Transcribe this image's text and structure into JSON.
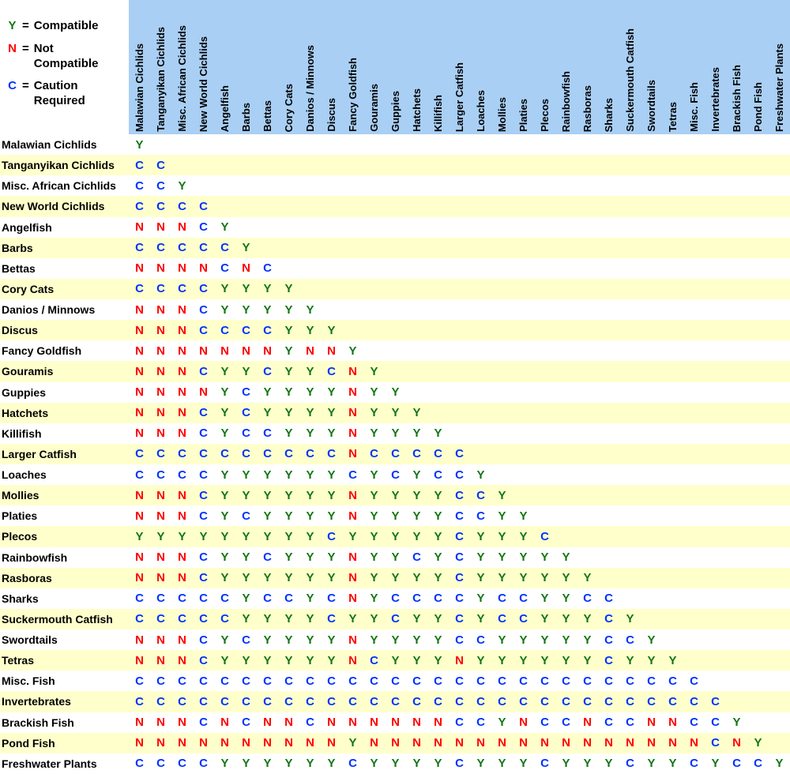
{
  "colors": {
    "header_bg": "#A9CFF4",
    "band_bg": "#FFFFCC",
    "compatible": "#117711",
    "not_compatible": "#FF0000",
    "caution": "#0033FF",
    "text": "#000000"
  },
  "legend": {
    "equals_sign": "=",
    "items": [
      {
        "symbol": "Y",
        "label": "Compatible",
        "color_key": "compatible"
      },
      {
        "symbol": "N",
        "label": "Not Compatible",
        "color_key": "not_compatible"
      },
      {
        "symbol": "C",
        "label": "Caution Required",
        "color_key": "caution"
      }
    ]
  },
  "chart_data": {
    "type": "table",
    "subtype": "compatibility-matrix",
    "legend": {
      "Y": "Compatible",
      "N": "Not Compatible",
      "C": "Caution Required"
    },
    "species": [
      "Malawian Cichlids",
      "Tanganyikan Cichlids",
      "Misc. African Cichlids",
      "New World Cichlids",
      "Angelfish",
      "Barbs",
      "Bettas",
      "Cory Cats",
      "Danios / Minnows",
      "Discus",
      "Fancy Goldfish",
      "Gouramis",
      "Guppies",
      "Hatchets",
      "Killifish",
      "Larger Catfish",
      "Loaches",
      "Mollies",
      "Platies",
      "Plecos",
      "Rainbowfish",
      "Rasboras",
      "Sharks",
      "Suckermouth Catfish",
      "Swordtails",
      "Tetras",
      "Misc. Fish",
      "Invertebrates",
      "Brackish Fish",
      "Pond Fish",
      "Freshwater Plants"
    ],
    "matrix": [
      "Y",
      "CC",
      "CCY",
      "CCCC",
      "NNNCY",
      "CCCCCY",
      "NNNNCNC",
      "CCCCYYYY",
      "NNNCYYYYY",
      "NNNCCCCYYY",
      "NNNNNNNYNNY",
      "NNNCYYCYYCNY",
      "NNNNYCYYYYNYY",
      "NNNCYCYYYYNYYY",
      "NNNCYCCYYYNYYYY",
      "CCCCCCCCCCNCCCCC",
      "CCCCYYYYYYCYCYCCY",
      "NNNCYYYYYYNYYYYCCY",
      "NNNCYCYYYYNYYYYCCYY",
      "YYYYYYYYYCYYYYYCYYYC",
      "NNNCYYCYYYNYYCYCYYYYY",
      "NNNCYYYYYYNYYYYCYYYYYY",
      "CCCCCYCCYCNYCCCCYCCYYCC",
      "CCCCCYYYYCYYCYYCYCCYYYCY",
      "NNNCYCYYYYNYYYYCCYYYYYCCY",
      "NNNCYYYYYYNCYYYNYYYYYYCYYY",
      "CCCCCCCCCCCCCCCCCCCCCCCCCCC",
      "CCCCCCCCCCCCCCCCCCCCCCCCCCCC",
      "NNNCNCNNCNNNNNNCCYNCCNCCNNCCY",
      "NNNNNNNNNNYNNNNNNNNNNNNNNNNCNY",
      "CCCCYYYYYYCYYYYCYYYCYYYCYYCYCCY"
    ]
  }
}
